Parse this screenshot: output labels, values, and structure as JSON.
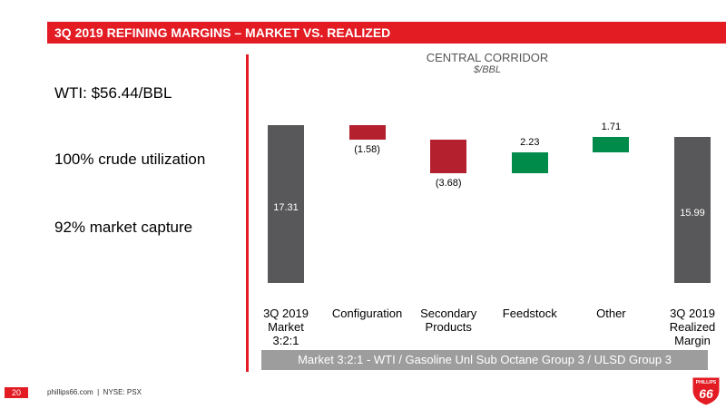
{
  "header": {
    "title": "3Q 2019 REFINING MARGINS – MARKET VS. REALIZED"
  },
  "stats": [
    "WTI: $56.44/BBL",
    "100% crude utilization",
    "92% market capture"
  ],
  "chart_data": {
    "type": "waterfall",
    "title": "CENTRAL CORRIDOR",
    "subtitle": "$/BBL",
    "categories": [
      "3Q 2019 Market 3:2:1",
      "Configuration",
      "Secondary Products",
      "Feedstock",
      "Other",
      "3Q 2019 Realized Margin"
    ],
    "values": [
      17.31,
      -1.58,
      -3.68,
      2.23,
      1.71,
      15.99
    ],
    "value_labels": [
      "17.31",
      "(1.58)",
      "(3.68)",
      "2.23",
      "1.71",
      "15.99"
    ],
    "is_total": [
      true,
      false,
      false,
      false,
      false,
      true
    ],
    "total_color": "#58585a",
    "decrease_color": "#b5202e",
    "increase_color": "#008b4a",
    "footnote": "Market 3:2:1 - WTI / Gasoline Unl Sub Octane Group 3 / ULSD Group 3"
  },
  "footer": {
    "page": "20",
    "text": "phillips66.com  |  NYSE: PSX"
  },
  "logo": {
    "top": "PHILLIPS",
    "number": "66"
  }
}
